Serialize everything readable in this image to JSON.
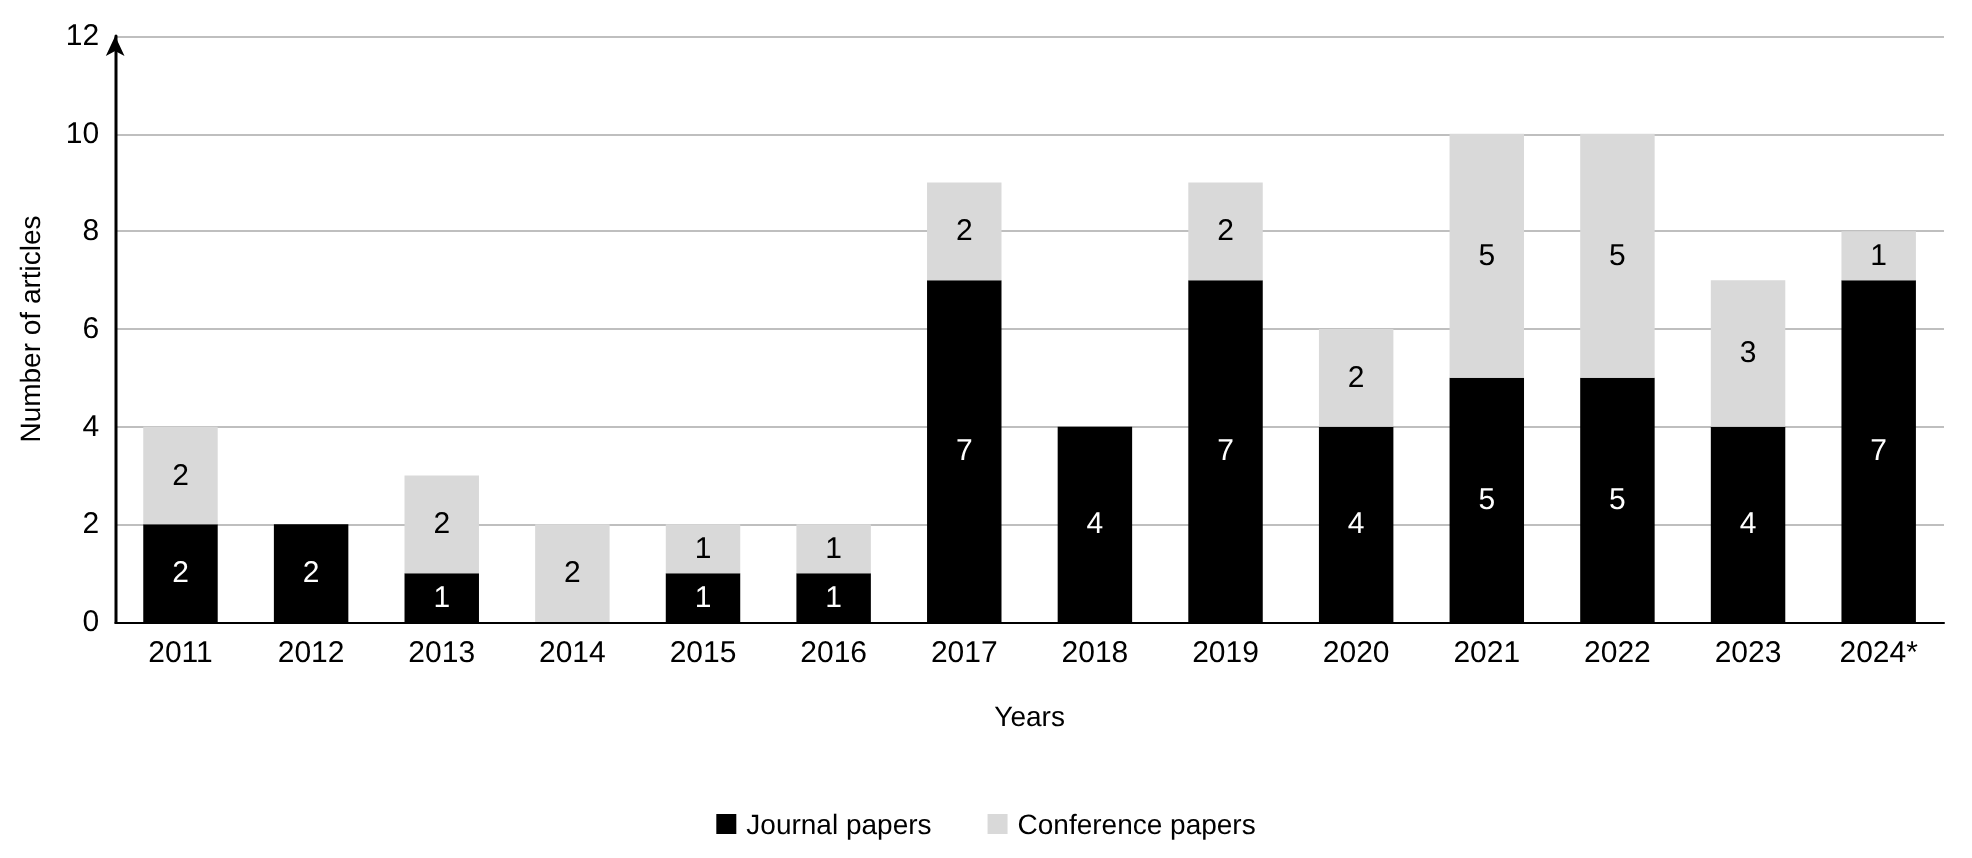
{
  "chart_data": {
    "type": "bar",
    "stacked": true,
    "xlabel": "Years",
    "ylabel": "Number of articles",
    "categories": [
      "2011",
      "2012",
      "2013",
      "2014",
      "2015",
      "2016",
      "2017",
      "2018",
      "2019",
      "2020",
      "2021",
      "2022",
      "2023",
      "2024*"
    ],
    "series": [
      {
        "name": "Journal papers",
        "color": "#000000",
        "values": [
          2,
          2,
          1,
          0,
          1,
          1,
          7,
          4,
          7,
          4,
          5,
          5,
          4,
          7
        ],
        "value_labels": [
          "2",
          "2",
          "1",
          null,
          "1",
          "1",
          "7",
          "4",
          "7",
          "4",
          "5",
          "5",
          "4",
          "7"
        ]
      },
      {
        "name": "Conference papers",
        "color": "#d9d9d9",
        "values": [
          2,
          0,
          2,
          2,
          1,
          1,
          2,
          0,
          2,
          2,
          5,
          5,
          3,
          1
        ],
        "value_labels": [
          "2",
          null,
          "2",
          "2",
          "1",
          "1",
          "2",
          null,
          "2",
          "2",
          "5",
          "5",
          "3",
          "1"
        ]
      }
    ],
    "ylim": [
      0,
      12
    ],
    "yticks": [
      0,
      2,
      4,
      6,
      8,
      10,
      12
    ],
    "grid": "y",
    "legend": "bottom"
  }
}
